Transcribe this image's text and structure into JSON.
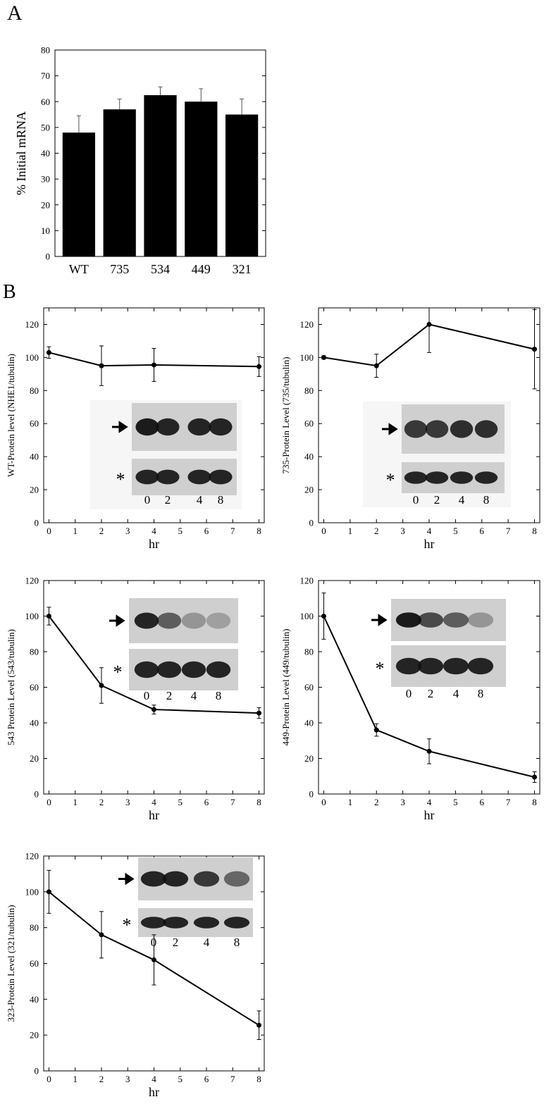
{
  "panel_labels": [
    "A",
    "B"
  ],
  "chart_data": [
    {
      "type": "bar",
      "y_label": "% Initial mRNA",
      "categories": [
        "WT",
        "735",
        "534",
        "449",
        "321"
      ],
      "values": [
        48,
        57,
        62.5,
        60,
        55
      ],
      "errors": [
        6.5,
        4,
        3.2,
        5,
        6
      ],
      "color": "#000000",
      "ylim": [
        0,
        80
      ],
      "yticks": [
        0,
        10,
        20,
        30,
        40,
        50,
        60,
        70,
        80
      ]
    },
    {
      "type": "line",
      "y_label": "WT-Protein level (NHE1/tubulin)",
      "x_label": "hr",
      "x": [
        0,
        2,
        4,
        8
      ],
      "values": [
        103,
        95,
        95.5,
        94.5
      ],
      "errors": [
        3.5,
        12,
        10,
        6
      ],
      "color": "#000000",
      "xlim": [
        -0.2,
        8.2
      ],
      "xticks": [
        0,
        1,
        2,
        3,
        4,
        5,
        6,
        7,
        8
      ],
      "ylim": [
        0,
        130
      ],
      "yticks": [
        0,
        20,
        40,
        60,
        80,
        100,
        120
      ],
      "inset_lanes": [
        "0",
        "2",
        "4",
        "8"
      ],
      "inset_marker": "*"
    },
    {
      "type": "line",
      "y_label": "735-Protein Level (735/tubulin)",
      "x_label": "hr",
      "x": [
        0,
        2,
        4,
        8
      ],
      "values": [
        100,
        95,
        120,
        105
      ],
      "errors": [
        1,
        7,
        17,
        24
      ],
      "color": "#000000",
      "xlim": [
        -0.2,
        8.2
      ],
      "xticks": [
        0,
        1,
        2,
        3,
        4,
        5,
        6,
        7,
        8
      ],
      "ylim": [
        0,
        130
      ],
      "yticks": [
        0,
        20,
        40,
        60,
        80,
        100,
        120
      ],
      "inset_lanes": [
        "0",
        "2",
        "4",
        "8"
      ],
      "inset_marker": "*"
    },
    {
      "type": "line",
      "y_label": "543 Protein Level (543/tubulin)",
      "x_label": "hr",
      "x": [
        0,
        2,
        4,
        8
      ],
      "values": [
        100,
        61,
        47.5,
        45.5
      ],
      "errors": [
        5,
        10,
        2.5,
        3
      ],
      "color": "#000000",
      "xlim": [
        -0.2,
        8.2
      ],
      "xticks": [
        0,
        1,
        2,
        3,
        4,
        5,
        6,
        7,
        8
      ],
      "ylim": [
        0,
        120
      ],
      "yticks": [
        0,
        20,
        40,
        60,
        80,
        100,
        120
      ],
      "inset_lanes": [
        "0",
        "2",
        "4",
        "8"
      ],
      "inset_marker": "*"
    },
    {
      "type": "line",
      "y_label": "449-Protein Level (449/tubulin)",
      "x_label": "hr",
      "x": [
        0,
        2,
        4,
        8
      ],
      "values": [
        100,
        36,
        24,
        9.5
      ],
      "errors": [
        13,
        3.5,
        7,
        3
      ],
      "color": "#000000",
      "xlim": [
        -0.2,
        8.2
      ],
      "xticks": [
        0,
        1,
        2,
        3,
        4,
        5,
        6,
        7,
        8
      ],
      "ylim": [
        0,
        120
      ],
      "yticks": [
        0,
        20,
        40,
        60,
        80,
        100,
        120
      ],
      "inset_lanes": [
        "0",
        "2",
        "4",
        "8"
      ],
      "inset_marker": "*"
    },
    {
      "type": "line",
      "y_label": "323-Protein Level (321/tubulin)",
      "x_label": "hr",
      "x": [
        0,
        2,
        4,
        8
      ],
      "values": [
        100,
        76,
        62,
        25.5
      ],
      "errors": [
        12,
        13,
        14,
        8
      ],
      "color": "#000000",
      "xlim": [
        -0.2,
        8.2
      ],
      "xticks": [
        0,
        1,
        2,
        3,
        4,
        5,
        6,
        7,
        8
      ],
      "ylim": [
        0,
        120
      ],
      "yticks": [
        0,
        20,
        40,
        60,
        80,
        100,
        120
      ],
      "inset_lanes": [
        "0",
        "2",
        "4",
        "8"
      ],
      "inset_marker": "*"
    }
  ]
}
